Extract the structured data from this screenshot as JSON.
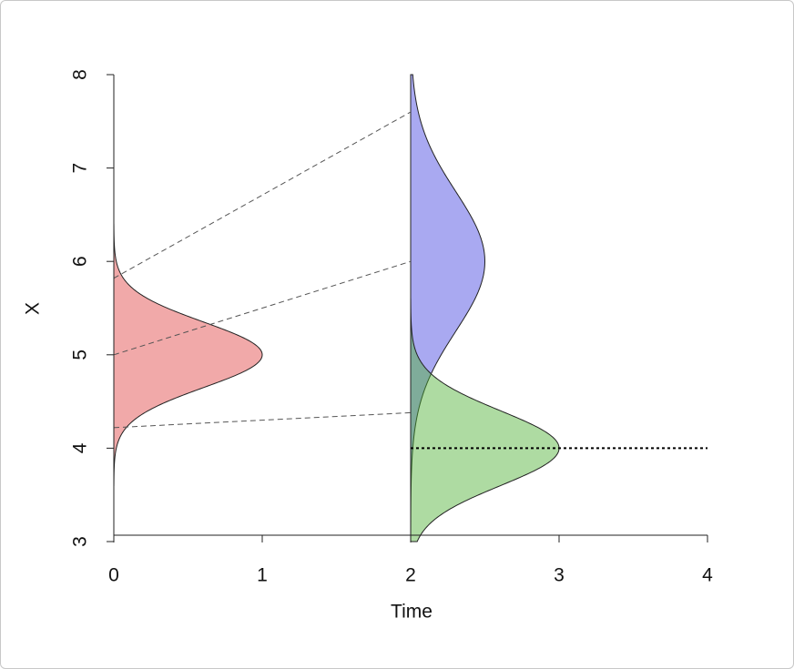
{
  "chart_data": {
    "type": "density",
    "xlabel": "Time",
    "ylabel": "X",
    "xlim": [
      0,
      4
    ],
    "xticks": [
      0,
      1,
      2,
      3,
      4
    ],
    "ylim": [
      3,
      8
    ],
    "yticks": [
      3,
      4,
      5,
      6,
      7,
      8
    ],
    "fill_opacity": 0.45,
    "distributions": [
      {
        "time": 0,
        "mean": 5,
        "sd": 0.35,
        "peak": 1,
        "color": "#e04040"
      },
      {
        "time": 2,
        "mean": 6,
        "sd": 0.75,
        "peak": 0.5,
        "color": "#4040e0"
      },
      {
        "time": 2,
        "mean": 4,
        "sd": 0.4,
        "peak": 1,
        "color": "#4caf30"
      }
    ],
    "dashed_segments": [
      {
        "x": [
          0,
          2
        ],
        "y": [
          5.82,
          7.6
        ]
      },
      {
        "x": [
          0,
          2
        ],
        "y": [
          5,
          6
        ]
      },
      {
        "x": [
          0,
          2
        ],
        "y": [
          4.22,
          4.38
        ]
      }
    ],
    "dotted_segments": [
      {
        "x": [
          2,
          4
        ],
        "y": [
          4,
          4
        ]
      }
    ]
  }
}
